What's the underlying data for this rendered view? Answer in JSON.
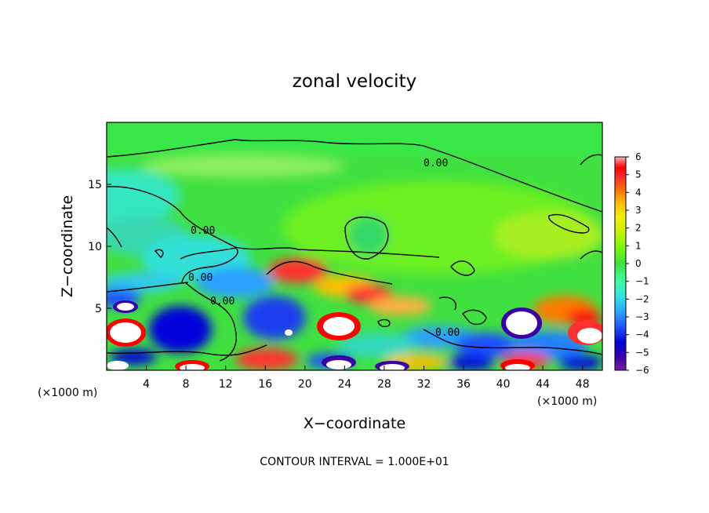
{
  "chart_data": {
    "type": "heatmap",
    "title": "zonal velocity",
    "xlabel": "X−coordinate",
    "ylabel": "Z−coordinate",
    "x_unit": "(×1000 m)",
    "y_unit": "(×1000 m)",
    "xlim": [
      0,
      50
    ],
    "ylim": [
      0,
      20
    ],
    "x_ticks": [
      "4",
      "8",
      "12",
      "16",
      "20",
      "24",
      "28",
      "32",
      "36",
      "40",
      "44",
      "48"
    ],
    "y_ticks": [
      "5",
      "10",
      "15"
    ],
    "footer": "CONTOUR INTERVAL = 1.000E+01",
    "contour_label": "0.00",
    "colorbar": {
      "ticks": [
        "6",
        "5",
        "4",
        "3",
        "2",
        "1",
        "0",
        "−1",
        "−2",
        "−3",
        "−4",
        "−5",
        "−6"
      ],
      "range": [
        -6,
        6
      ],
      "colors": [
        "#7a1fa0",
        "#3b00a8",
        "#0000dc",
        "#1e50ff",
        "#2aa0ff",
        "#30e0e8",
        "#3cff9a",
        "#40e040",
        "#7cfc00",
        "#c8f000",
        "#f0f000",
        "#ffc000",
        "#ff7a00",
        "#ff3030",
        "#ff0000",
        "#ff7a7a",
        "#ffb0b0"
      ]
    }
  }
}
